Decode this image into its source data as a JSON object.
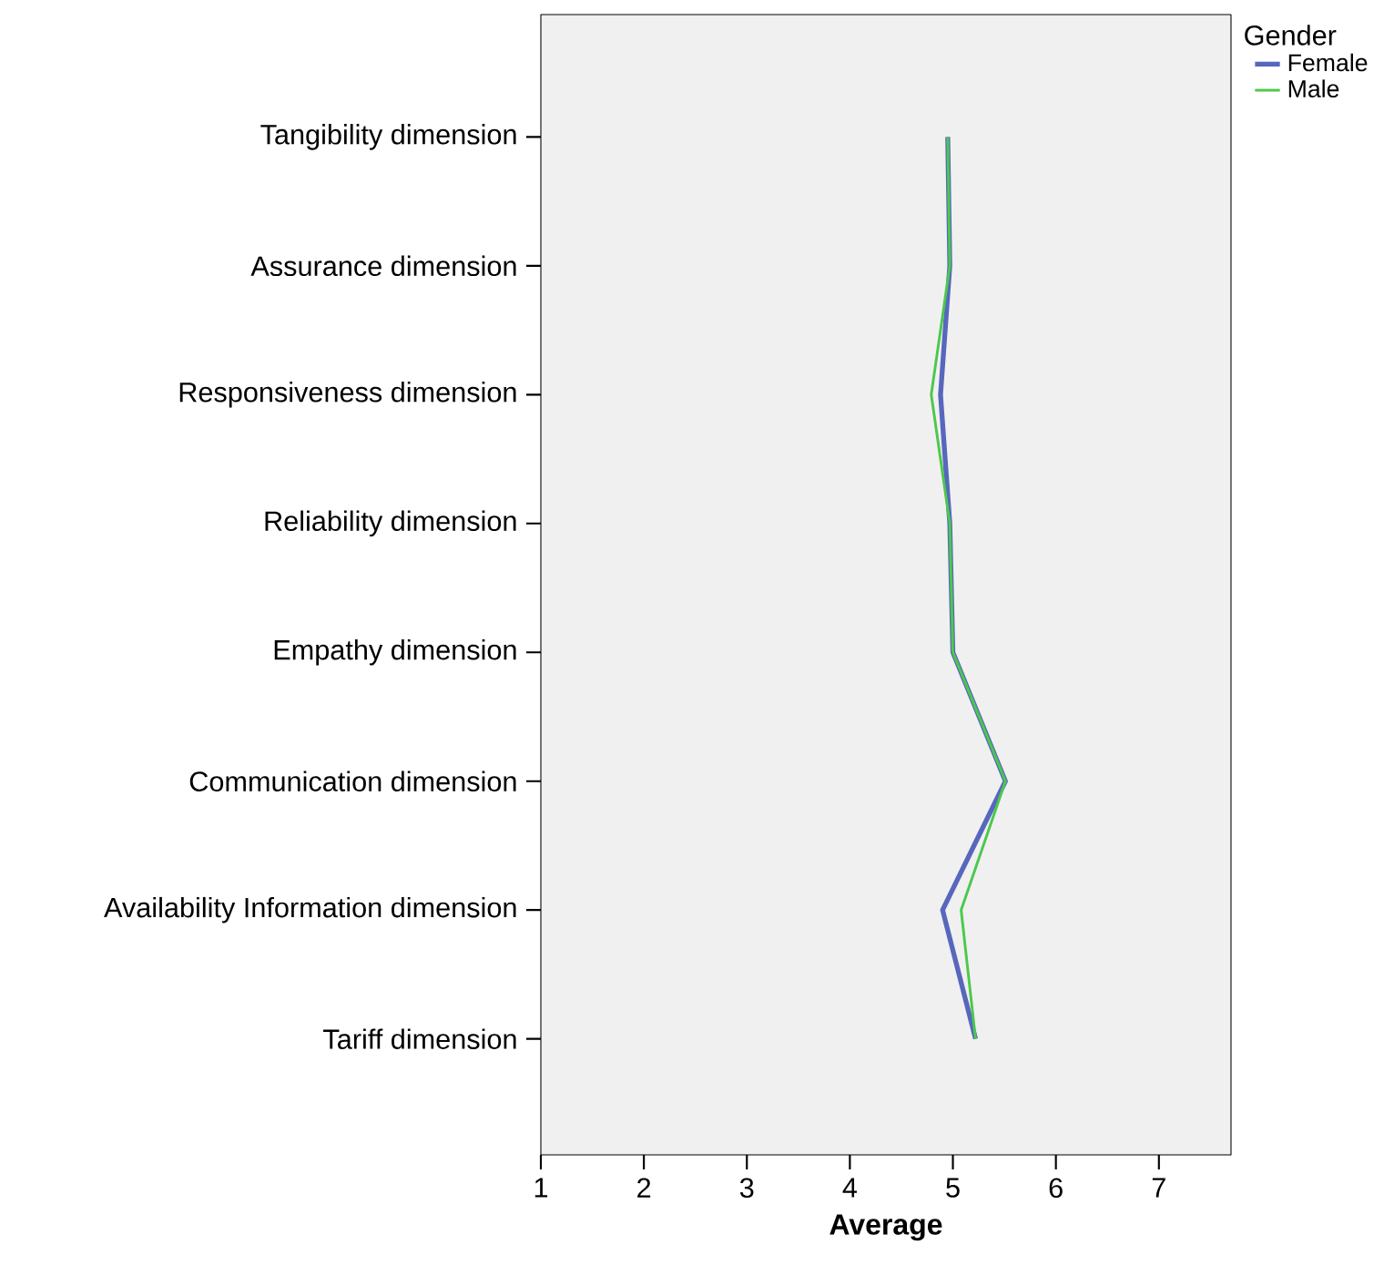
{
  "chart_data": {
    "type": "line",
    "orientation": "horizontal",
    "xlabel": "Average",
    "legend_title": "Gender",
    "legend": "top right",
    "marker": "none",
    "grid": false,
    "categories": [
      "Tangibility dimension",
      "Assurance dimension",
      "Responsiveness dimension",
      "Reliability dimension",
      "Empathy dimension",
      "Communication dimension",
      "Availability Information dimension",
      "Tariff dimension"
    ],
    "xlim": [
      1,
      7.7
    ],
    "xticks": [
      1,
      2,
      3,
      4,
      5,
      6,
      7
    ],
    "series": [
      {
        "name": "Female",
        "color": "#5767bd",
        "values": [
          4.95,
          4.97,
          4.88,
          4.97,
          5.0,
          5.51,
          4.9,
          5.22
        ]
      },
      {
        "name": "Male",
        "color": "#4cc84c",
        "values": [
          4.95,
          4.97,
          4.79,
          4.97,
          5.0,
          5.51,
          5.08,
          5.22
        ]
      }
    ]
  }
}
